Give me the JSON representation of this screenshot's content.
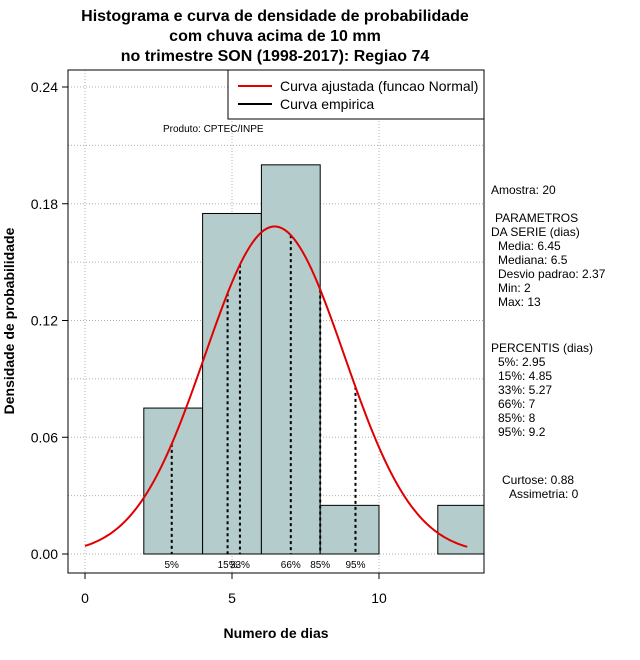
{
  "chart_data": {
    "type": "bar",
    "title_lines": [
      "Histograma e curva de densidade de probabilidade",
      "com chuva acima de 10 mm",
      "no trimestre SON (1998-2017): Regiao 74"
    ],
    "xlabel": "Numero de dias",
    "ylabel": "Densidade de probabilidade",
    "xlim": [
      -0.5,
      13.5
    ],
    "ylim": [
      0,
      0.24
    ],
    "x_ticks": [
      0,
      5,
      10
    ],
    "y_ticks": [
      0.0,
      0.06,
      0.12,
      0.18,
      0.24
    ],
    "y_tick_labels": [
      "0.00",
      "0.06",
      "0.12",
      "0.18",
      "0.24"
    ],
    "bins": [
      {
        "start": 2,
        "end": 4,
        "density": 0.075
      },
      {
        "start": 4,
        "end": 6,
        "density": 0.175
      },
      {
        "start": 6,
        "end": 8,
        "density": 0.2
      },
      {
        "start": 8,
        "end": 10,
        "density": 0.025
      },
      {
        "start": 10,
        "end": 12,
        "density": 0.0
      },
      {
        "start": 12,
        "end": 14,
        "density": 0.025
      }
    ],
    "normal_fit": {
      "mean": 6.45,
      "sd": 2.37,
      "x_from": 0,
      "x_to": 13
    },
    "percentiles": [
      {
        "label": "5%",
        "value": 2.95
      },
      {
        "label": "15%",
        "value": 4.85
      },
      {
        "label": "33%",
        "value": 5.27
      },
      {
        "label": "66%",
        "value": 7
      },
      {
        "label": "85%",
        "value": 8
      },
      {
        "label": "95%",
        "value": 9.2
      }
    ],
    "legend": {
      "position": "top-right",
      "entries": [
        {
          "label": "Curva ajustada (funcao Normal)",
          "color": "#e00000"
        },
        {
          "label": "Curva empirica",
          "color": "#000000"
        }
      ]
    },
    "credit": "Produto: CPTEC/INPE",
    "bar_color": "#b4cccc",
    "curve_color": "#e00000",
    "grid": true
  },
  "stats": {
    "amostra": "Amostra: 20",
    "parametros_title_1": "PARAMETROS",
    "parametros_title_2": "DA SERIE (dias)",
    "media": "Media: 6.45",
    "mediana": "Mediana: 6.5",
    "desvio": "Desvio padrao: 2.37",
    "min": "Min: 2",
    "max": "Max: 13",
    "percentis_title": "PERCENTIS (dias)",
    "p5": "5%: 2.95",
    "p15": "15%: 4.85",
    "p33": "33%: 5.27",
    "p66": "66%: 7",
    "p85": "85%: 8",
    "p95": "95%: 9.2",
    "curtose": "Curtose: 0.88",
    "assimetria": "Assimetria: 0"
  }
}
